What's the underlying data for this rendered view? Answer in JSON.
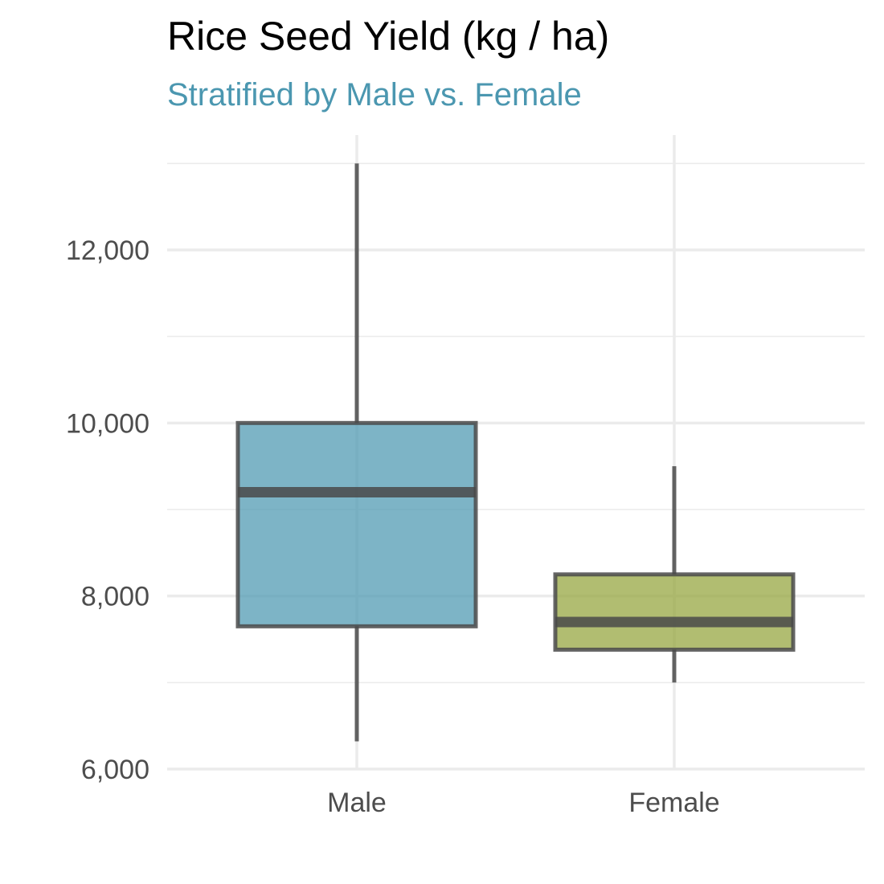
{
  "chart_data": {
    "type": "boxplot",
    "title": "Rice Seed Yield (kg / ha)",
    "subtitle": "Stratified by Male vs. Female",
    "xlabel": "",
    "ylabel": "",
    "categories": [
      "Male",
      "Female"
    ],
    "boxes": [
      {
        "category": "Male",
        "min": 6320,
        "q1": 7650,
        "median": 9200,
        "q3": 10000,
        "max": 13000,
        "color": "#4b97b0"
      },
      {
        "category": "Female",
        "min": 7000,
        "q1": 7380,
        "median": 7700,
        "q3": 8250,
        "max": 9500,
        "color": "#93a43a"
      }
    ],
    "y_ticks": [
      6000,
      8000,
      10000,
      12000
    ],
    "y_tick_labels": [
      "6,000",
      "8,000",
      "10,000",
      "12,000"
    ],
    "ylim": [
      6000,
      13300
    ],
    "grid": true,
    "legend": "none",
    "colors": {
      "title": "#000000",
      "subtitle": "#4b97b0",
      "outline": "#4a4a4a",
      "grid": "#ebebeb",
      "tick_text": "#4d4d4d"
    }
  }
}
